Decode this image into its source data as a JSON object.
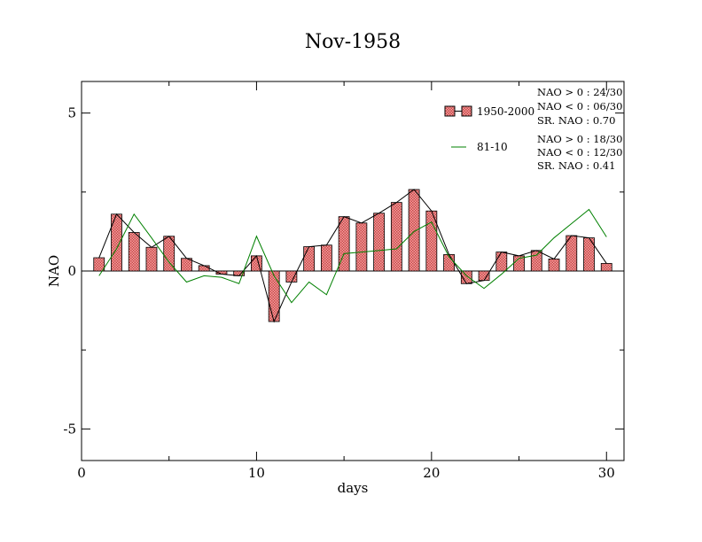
{
  "chart_data": {
    "type": "bar",
    "title": "Nov-1958",
    "xlabel": "days",
    "ylabel": "NAO",
    "xlim": [
      0,
      31
    ],
    "ylim": [
      -6,
      6
    ],
    "xticks": [
      0,
      10,
      20,
      30
    ],
    "yticks": [
      -5,
      0,
      5
    ],
    "x": [
      1,
      2,
      3,
      4,
      5,
      6,
      7,
      8,
      9,
      10,
      11,
      12,
      13,
      14,
      15,
      16,
      17,
      18,
      19,
      20,
      21,
      22,
      23,
      24,
      25,
      26,
      27,
      28,
      29,
      30
    ],
    "series": [
      {
        "name": "1950-2000",
        "kind": "bar+line",
        "color": "#f08080",
        "line_color": "#000000",
        "values": [
          0.42,
          1.8,
          1.22,
          0.75,
          1.1,
          0.4,
          0.17,
          -0.1,
          -0.15,
          0.48,
          -1.6,
          -0.35,
          0.77,
          0.82,
          1.72,
          1.52,
          1.83,
          2.17,
          2.58,
          1.9,
          0.52,
          -0.4,
          -0.3,
          0.6,
          0.48,
          0.65,
          0.38,
          1.12,
          1.05,
          0.24
        ]
      },
      {
        "name": "81-10",
        "kind": "line",
        "color": "#008000",
        "values": [
          -0.15,
          0.7,
          1.8,
          1.05,
          0.28,
          -0.35,
          -0.15,
          -0.2,
          -0.4,
          1.1,
          -0.15,
          -1.0,
          -0.35,
          -0.75,
          0.55,
          0.6,
          0.65,
          0.7,
          1.25,
          1.55,
          0.45,
          -0.15,
          -0.55,
          -0.1,
          0.4,
          0.5,
          1.05,
          1.5,
          1.95,
          1.08
        ]
      }
    ],
    "legend": {
      "position": "top-right",
      "entries": [
        {
          "label": "1950-2000",
          "stats": [
            "NAO > 0 : 24/30",
            "NAO < 0 : 06/30",
            "SR. NAO :  0.70"
          ]
        },
        {
          "label": "81-10",
          "stats": [
            "NAO > 0 : 18/30",
            "NAO < 0 : 12/30",
            "SR. NAO :  0.41"
          ]
        }
      ]
    },
    "grid": false
  }
}
